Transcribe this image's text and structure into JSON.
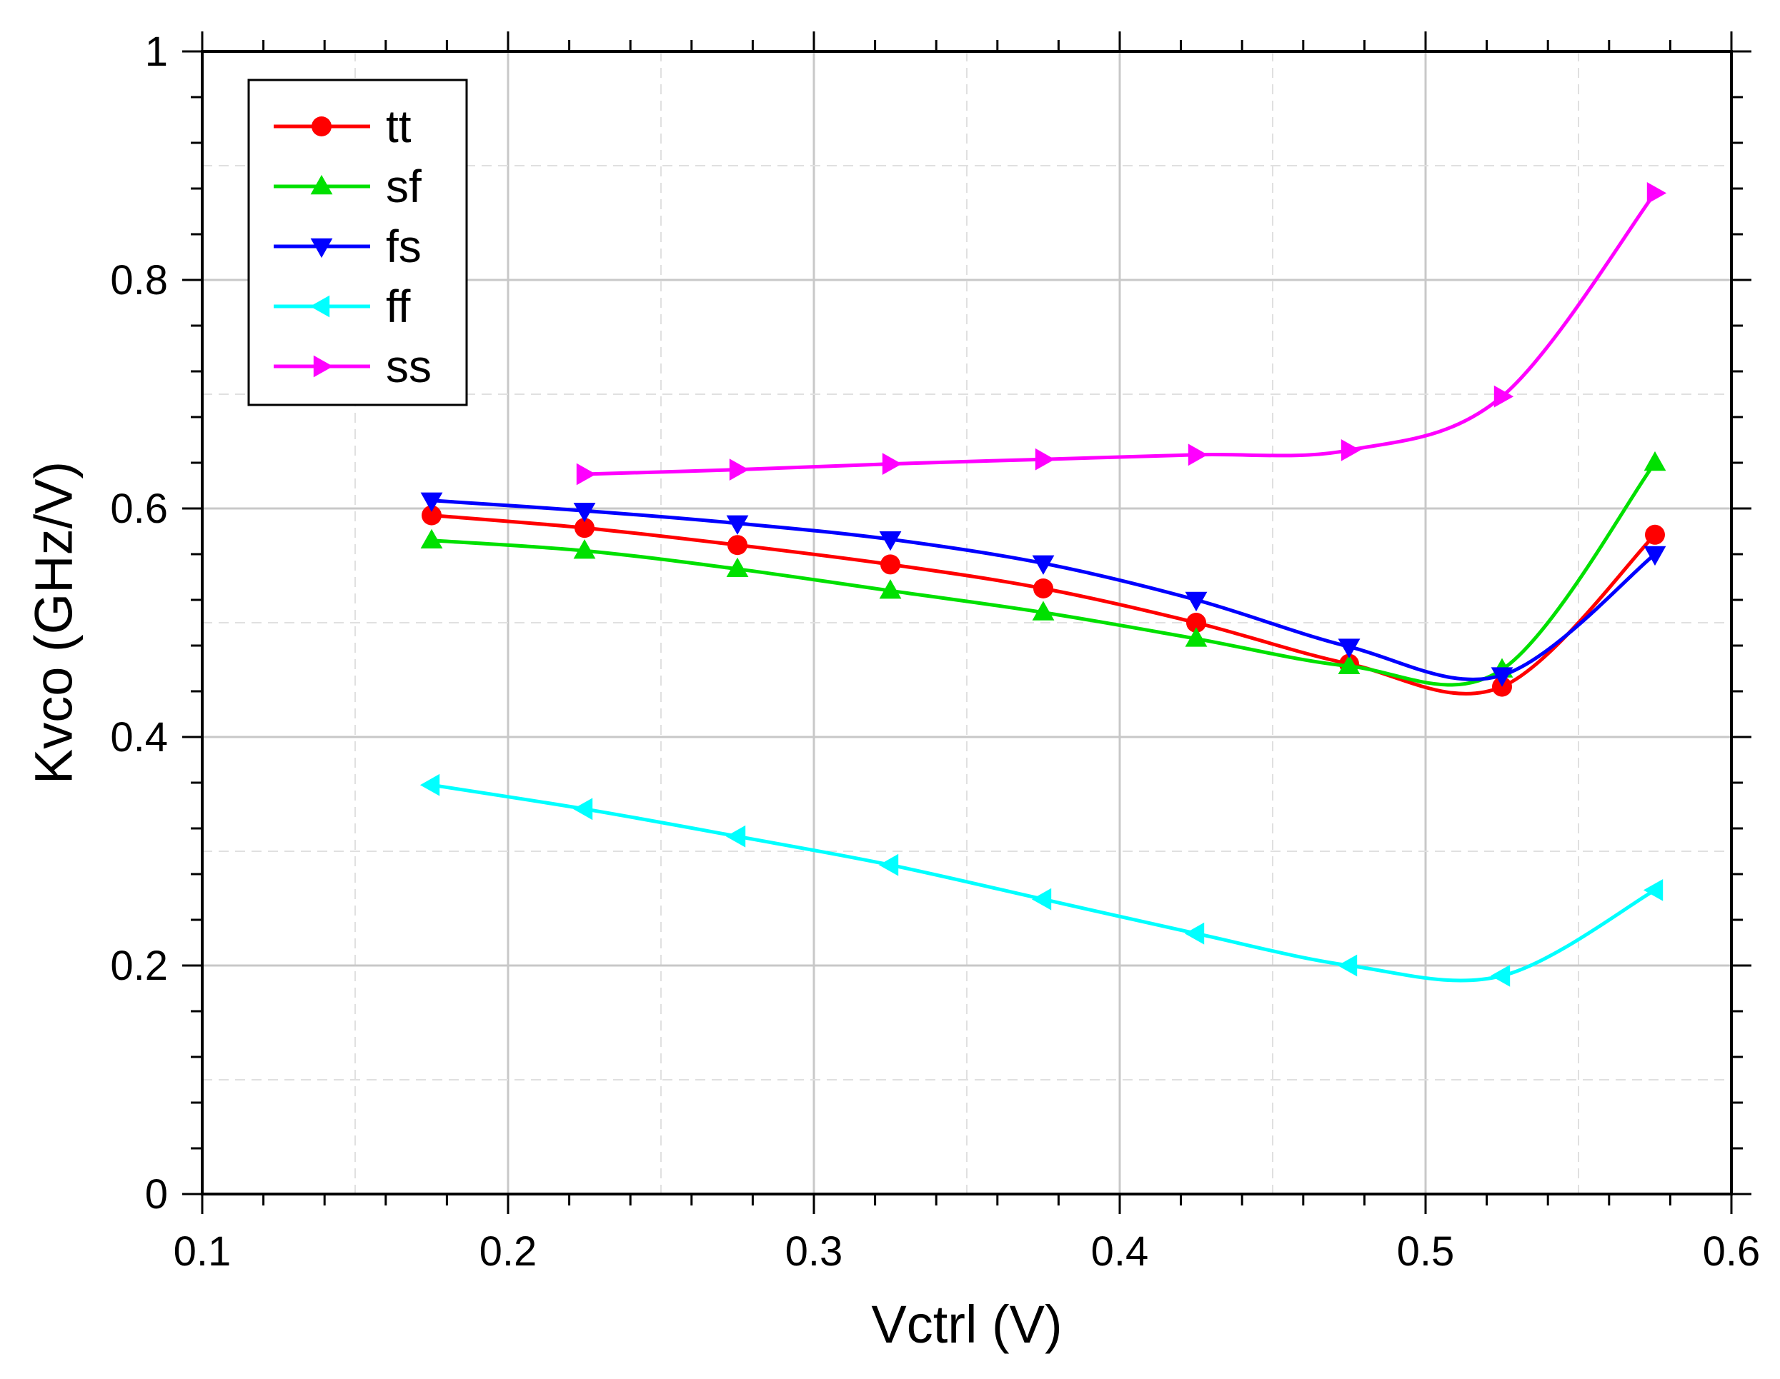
{
  "chart_data": {
    "type": "line",
    "title": "",
    "xlabel": "Vctrl (V)",
    "ylabel": "Kvco (GHz/V)",
    "xlim": [
      0.1,
      0.6
    ],
    "ylim": [
      0,
      1
    ],
    "xticks": [
      0.1,
      0.2,
      0.3,
      0.4,
      0.5,
      0.6
    ],
    "xtick_labels": [
      "0.1",
      "0.2",
      "0.3",
      "0.4",
      "0.5",
      "0.6"
    ],
    "yticks": [
      0,
      0.2,
      0.4,
      0.6,
      0.8,
      1
    ],
    "ytick_labels": [
      "0",
      "0.2",
      "0.4",
      "0.6",
      "0.8",
      "1"
    ],
    "grid": true,
    "legend_position": "top-left",
    "series": [
      {
        "name": "tt",
        "color": "#ff0000",
        "marker": "circle",
        "x": [
          0.175,
          0.225,
          0.275,
          0.325,
          0.375,
          0.425,
          0.475,
          0.525,
          0.575
        ],
        "y": [
          0.594,
          0.583,
          0.568,
          0.551,
          0.53,
          0.5,
          0.464,
          0.444,
          0.577
        ]
      },
      {
        "name": "sf",
        "color": "#00e000",
        "marker": "triangle-up",
        "x": [
          0.175,
          0.225,
          0.275,
          0.325,
          0.375,
          0.425,
          0.475,
          0.525,
          0.575
        ],
        "y": [
          0.572,
          0.563,
          0.547,
          0.528,
          0.509,
          0.486,
          0.462,
          0.459,
          0.64
        ]
      },
      {
        "name": "fs",
        "color": "#0000ff",
        "marker": "triangle-down",
        "x": [
          0.175,
          0.225,
          0.275,
          0.325,
          0.375,
          0.425,
          0.475,
          0.525,
          0.575
        ],
        "y": [
          0.607,
          0.598,
          0.587,
          0.573,
          0.552,
          0.52,
          0.479,
          0.454,
          0.56
        ]
      },
      {
        "name": "ff",
        "color": "#00ffff",
        "marker": "triangle-left",
        "x": [
          0.175,
          0.225,
          0.275,
          0.325,
          0.375,
          0.425,
          0.475,
          0.525,
          0.575
        ],
        "y": [
          0.358,
          0.337,
          0.313,
          0.288,
          0.258,
          0.228,
          0.2,
          0.191,
          0.266
        ]
      },
      {
        "name": "ss",
        "color": "#ff00ff",
        "marker": "triangle-right",
        "x": [
          0.225,
          0.275,
          0.325,
          0.375,
          0.425,
          0.475,
          0.525,
          0.575
        ],
        "y": [
          0.63,
          0.634,
          0.639,
          0.643,
          0.647,
          0.651,
          0.698,
          0.876
        ]
      }
    ]
  }
}
